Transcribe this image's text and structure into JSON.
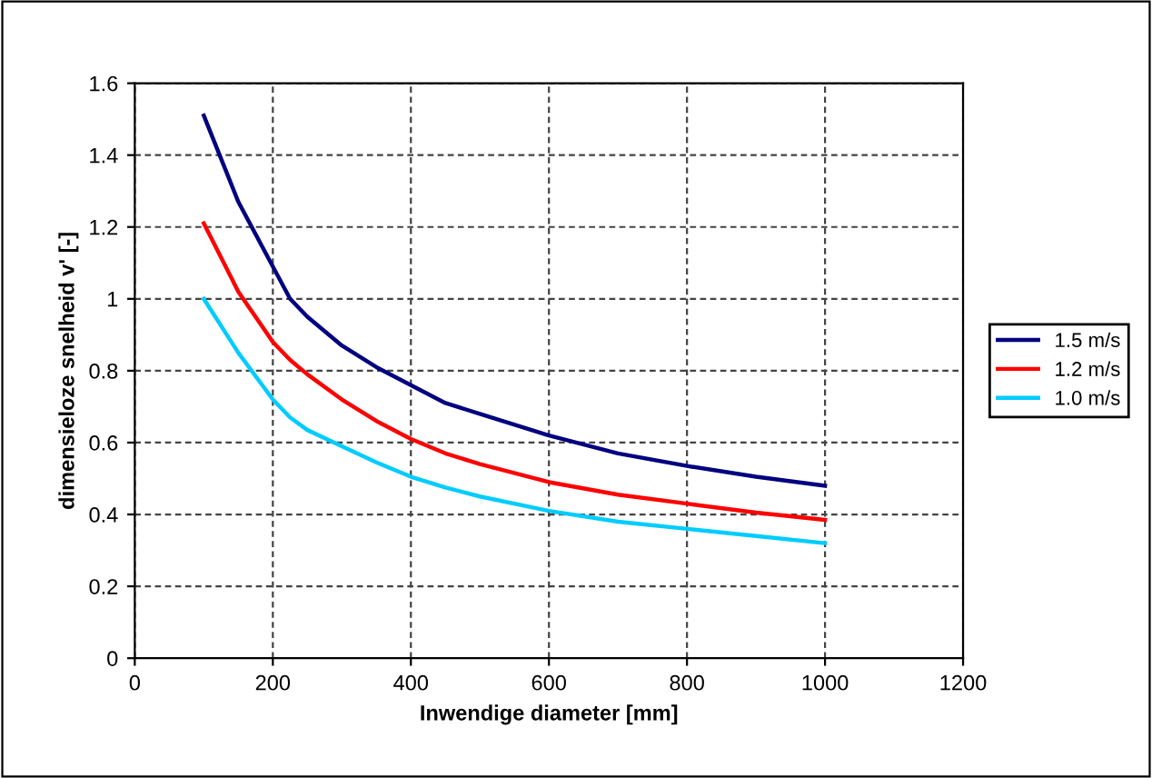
{
  "chart_data": {
    "type": "line",
    "xlabel": "Inwendige diameter [mm]",
    "ylabel": "dimensieloze snelheid v' [-]",
    "x": [
      100,
      150,
      200,
      225,
      250,
      300,
      350,
      400,
      450,
      500,
      600,
      700,
      800,
      900,
      1000
    ],
    "series": [
      {
        "name": "1.5 m/s",
        "color": "#000080",
        "values": [
          1.51,
          1.27,
          1.09,
          1.0,
          0.95,
          0.87,
          0.81,
          0.76,
          0.71,
          0.68,
          0.62,
          0.57,
          0.535,
          0.505,
          0.48
        ]
      },
      {
        "name": "1.2 m/s",
        "color": "#ff0000",
        "values": [
          1.21,
          1.02,
          0.88,
          0.83,
          0.79,
          0.72,
          0.66,
          0.61,
          0.57,
          0.54,
          0.49,
          0.455,
          0.43,
          0.405,
          0.385
        ]
      },
      {
        "name": "1.0 m/s",
        "color": "#00ccff",
        "values": [
          1.0,
          0.85,
          0.72,
          0.67,
          0.635,
          0.59,
          0.545,
          0.505,
          0.475,
          0.45,
          0.41,
          0.38,
          0.36,
          0.34,
          0.32
        ]
      }
    ],
    "xlim": [
      0,
      1200
    ],
    "xticks": [
      0,
      200,
      400,
      600,
      800,
      1000,
      1200
    ],
    "ylim": [
      0,
      1.6
    ],
    "yticks": [
      0,
      0.2,
      0.4,
      0.6,
      0.8,
      1,
      1.2,
      1.4,
      1.6
    ],
    "grid": true,
    "legend": "right",
    "marker": "none",
    "line_style": "solid"
  }
}
